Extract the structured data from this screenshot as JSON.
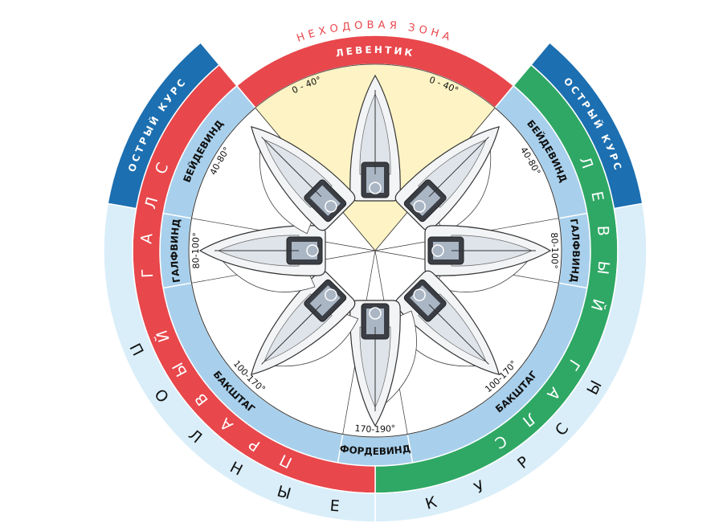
{
  "zone_label": "НЕХОДОВАЯ ЗОНА",
  "outer": {
    "close": "ОСТРЫЙ КУРС",
    "full": "ПОЛНЫЕ КУРСЫ"
  },
  "tacks": {
    "starboard": "ПРАВЫЙ ГАЛС",
    "port": "ЛЕВЫЙ ГАЛС"
  },
  "courses": {
    "in_irons": "ЛЕВЕНТИК",
    "close_hauled": "БЕЙДЕВИНД",
    "beam_reach": "ГАЛФВИНД",
    "broad_reach": "БАКШТАГ",
    "running": "ФОРДЕВИНД"
  },
  "angles": {
    "in_irons": "0 - 40°",
    "close_hauled": "40-80°",
    "beam_reach": "80-100°",
    "broad_reach": "100-170°",
    "running": "170-190°"
  }
}
